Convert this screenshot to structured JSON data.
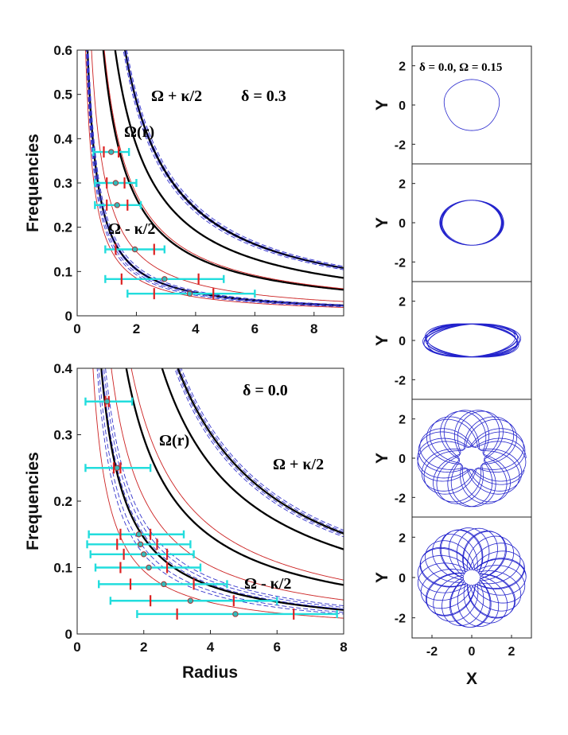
{
  "chart_data": [
    {
      "id": "top_left",
      "type": "line",
      "xlim": [
        0,
        9
      ],
      "ylim": [
        0,
        0.6
      ],
      "xticks": [
        0,
        2,
        4,
        6,
        8
      ],
      "yticks": [
        0,
        0.1,
        0.2,
        0.3,
        0.4,
        0.5,
        0.6
      ],
      "ylabel": "Frequencies",
      "xlabel": "",
      "annotations": [
        "Ω + κ/2",
        "δ = 0.3",
        "Ω(r)",
        "Ω - κ/2"
      ],
      "curves": [
        {
          "name": "Omega",
          "kind": "thick",
          "color": "#000000",
          "A": 0.53
        },
        {
          "name": "Omega",
          "kind": "thick",
          "color": "#000000",
          "A": 0.77
        },
        {
          "name": "Omega + kappa/2",
          "kind": "thick",
          "color": "#000000",
          "A": 0.97
        },
        {
          "name": "Omega - kappa/2",
          "kind": "thick",
          "color": "#000000",
          "A": 0.21
        },
        {
          "name": "envelope",
          "kind": "thin",
          "color": "#cc2222",
          "A": 0.29
        },
        {
          "name": "envelope",
          "kind": "thin",
          "color": "#cc2222",
          "A": 0.55
        },
        {
          "name": "envelope",
          "kind": "thin",
          "color": "#cc2222",
          "A": 0.17
        },
        {
          "name": "band",
          "kind": "dashed",
          "color": "#3333cc",
          "A": 0.185
        },
        {
          "name": "band",
          "kind": "dashed",
          "color": "#3333cc",
          "A": 0.195
        },
        {
          "name": "band",
          "kind": "dashed",
          "color": "#3333cc",
          "A": 0.205
        },
        {
          "name": "band",
          "kind": "dashed",
          "color": "#3333cc",
          "A": 0.215
        },
        {
          "name": "band",
          "kind": "dashed",
          "color": "#3333cc",
          "A": 0.225
        },
        {
          "name": "band",
          "kind": "dashed",
          "color": "#3333cc",
          "A": 0.935
        },
        {
          "name": "band",
          "kind": "dashed",
          "color": "#3333cc",
          "A": 0.955
        },
        {
          "name": "band",
          "kind": "dashed",
          "color": "#3333cc",
          "A": 0.985
        },
        {
          "name": "band",
          "kind": "dashed",
          "color": "#3333cc",
          "A": 1.005
        }
      ],
      "points": [
        {
          "x": 1.15,
          "y": 0.37,
          "xerr_lo": 0.6,
          "xerr_hi": 0.6,
          "red": [
            0.9,
            1.4
          ]
        },
        {
          "x": 1.3,
          "y": 0.3,
          "xerr_lo": 0.7,
          "xerr_hi": 0.7,
          "red": [
            1.0,
            1.6
          ]
        },
        {
          "x": 1.35,
          "y": 0.25,
          "xerr_lo": 0.75,
          "xerr_hi": 0.8,
          "red": [
            1.0,
            1.7
          ]
        },
        {
          "x": 1.95,
          "y": 0.15,
          "xerr_lo": 1.0,
          "xerr_hi": 1.0,
          "red": [
            1.3,
            2.6
          ]
        },
        {
          "x": 2.95,
          "y": 0.083,
          "xerr_lo": 2.0,
          "xerr_hi": 2.0,
          "red": [
            1.5,
            4.1
          ]
        },
        {
          "x": 3.8,
          "y": 0.05,
          "xerr_lo": 2.1,
          "xerr_hi": 2.2,
          "red": [
            2.6,
            4.6
          ]
        }
      ]
    },
    {
      "id": "bottom_left",
      "type": "line",
      "xlim": [
        0,
        8
      ],
      "ylim": [
        0,
        0.4
      ],
      "xticks": [
        0,
        2,
        4,
        6,
        8
      ],
      "yticks": [
        0,
        0.1,
        0.2,
        0.3,
        0.4
      ],
      "ylabel": "Frequencies",
      "xlabel": "Radius",
      "annotations": [
        "δ = 0.0",
        "Ω(r)",
        "Ω + κ/2",
        "Ω - κ/2"
      ],
      "curves": [
        {
          "name": "Omega",
          "kind": "thick",
          "color": "#000000",
          "A": 0.59
        },
        {
          "name": "Omega + kappa/2",
          "kind": "thick",
          "color": "#000000",
          "A": 1.02
        },
        {
          "name": "Omega",
          "kind": "thick",
          "color": "#000000",
          "A": 1.21
        },
        {
          "name": "Omega - kappa/2",
          "kind": "thick",
          "color": "#000000",
          "A": 0.29
        },
        {
          "name": "envelope",
          "kind": "thin",
          "color": "#cc2222",
          "A": 0.41
        },
        {
          "name": "envelope",
          "kind": "thin",
          "color": "#cc2222",
          "A": 0.65
        },
        {
          "name": "envelope",
          "kind": "thin",
          "color": "#cc2222",
          "A": 0.19
        },
        {
          "name": "band",
          "kind": "dashed",
          "color": "#3333cc",
          "A": 0.24
        },
        {
          "name": "band",
          "kind": "dashed",
          "color": "#3333cc",
          "A": 0.26
        },
        {
          "name": "band",
          "kind": "dashed",
          "color": "#3333cc",
          "A": 0.3
        },
        {
          "name": "band",
          "kind": "dashed",
          "color": "#3333cc",
          "A": 0.32
        },
        {
          "name": "band",
          "kind": "dashed",
          "color": "#3333cc",
          "A": 0.34
        },
        {
          "name": "band",
          "kind": "dashed",
          "color": "#3333cc",
          "A": 1.17
        },
        {
          "name": "band",
          "kind": "dashed",
          "color": "#3333cc",
          "A": 1.19
        },
        {
          "name": "band",
          "kind": "dashed",
          "color": "#3333cc",
          "A": 1.23
        },
        {
          "name": "band",
          "kind": "dashed",
          "color": "#3333cc",
          "A": 1.25
        }
      ],
      "points": [
        {
          "x": 0.9,
          "y": 0.35,
          "xerr_lo": 0.65,
          "xerr_hi": 0.75,
          "red": [
            0.85,
            0.95
          ]
        },
        {
          "x": 1.2,
          "y": 0.25,
          "xerr_lo": 0.95,
          "xerr_hi": 1.0,
          "red": [
            1.1,
            1.3
          ]
        },
        {
          "x": 1.85,
          "y": 0.15,
          "xerr_lo": 1.5,
          "xerr_hi": 1.35,
          "red": [
            1.3,
            2.2
          ]
        },
        {
          "x": 1.9,
          "y": 0.135,
          "xerr_lo": 1.6,
          "xerr_hi": 1.5,
          "red": [
            1.2,
            2.4
          ]
        },
        {
          "x": 2.0,
          "y": 0.12,
          "xerr_lo": 1.6,
          "xerr_hi": 1.5,
          "red": [
            1.4,
            2.7
          ]
        },
        {
          "x": 2.15,
          "y": 0.1,
          "xerr_lo": 1.6,
          "xerr_hi": 1.55,
          "red": [
            1.3,
            2.7
          ]
        },
        {
          "x": 2.6,
          "y": 0.075,
          "xerr_lo": 1.95,
          "xerr_hi": 1.9,
          "red": [
            1.6,
            3.5
          ]
        },
        {
          "x": 3.4,
          "y": 0.05,
          "xerr_lo": 2.4,
          "xerr_hi": 2.6,
          "red": [
            2.2,
            4.7
          ]
        },
        {
          "x": 4.75,
          "y": 0.03,
          "xerr_lo": 2.95,
          "xerr_hi": 3.05,
          "red": [
            3.0,
            6.5
          ]
        }
      ]
    },
    {
      "id": "orbits",
      "type": "line",
      "panels": 5,
      "xlim": [
        -3,
        3
      ],
      "ylim": [
        -3,
        3
      ],
      "xticks": [
        -2,
        0,
        2
      ],
      "yticks": [
        -2,
        0,
        2
      ],
      "ylabel": "Y",
      "xlabel": "X",
      "label": "δ = 0.0,  Ω = 0.15",
      "color": "#2222cc",
      "panel_params": [
        {
          "a": 1.38,
          "b": 1.3,
          "w": 0.0,
          "n": 1,
          "amp": 0.0,
          "loops": 1
        },
        {
          "a": 1.55,
          "b": 1.15,
          "w": 0.12,
          "n": 7,
          "amp": 0.0,
          "loops": 1
        },
        {
          "a": 2.4,
          "b": 0.85,
          "w": 0.35,
          "n": 12,
          "amp": 0.0,
          "loops": 1
        },
        {
          "r0": 1.6,
          "amp": 1.0,
          "ratio": 0.92,
          "loops": 13
        },
        {
          "r0": 1.5,
          "amp": 1.1,
          "ratio": 0.87,
          "loops": 15
        }
      ]
    }
  ]
}
